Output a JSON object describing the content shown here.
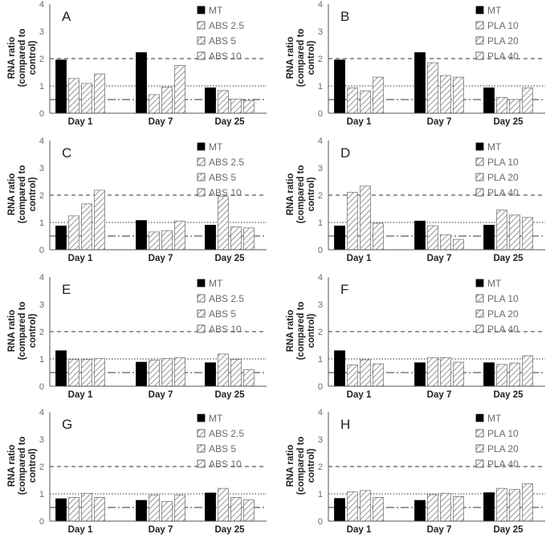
{
  "colors": {
    "mt": "#000000",
    "hatch": "#7a7a7a",
    "axis": "#555555",
    "label": "#6b6b6b",
    "text": "#222222"
  },
  "chart_data": [
    {
      "type": "bar",
      "panel": "A",
      "title": "A",
      "ylabel_line1": "RNA ratio",
      "ylabel_line2": "(compared to",
      "ylabel_line3": "control)",
      "ylim": [
        0,
        4
      ],
      "yticks": [
        "0",
        "1",
        "2",
        "3",
        "4"
      ],
      "categories": [
        "Day 1",
        "Day 7",
        "Day 25"
      ],
      "series": [
        {
          "name": "MT",
          "values": [
            1.95,
            2.22,
            0.93
          ]
        },
        {
          "name": "ABS 2.5",
          "values": [
            1.27,
            0.68,
            0.83
          ]
        },
        {
          "name": "ABS 5",
          "values": [
            1.09,
            0.96,
            0.52
          ]
        },
        {
          "name": "ABS 10",
          "values": [
            1.44,
            1.75,
            0.47
          ]
        }
      ],
      "reference_lines": [
        2,
        1,
        0.5
      ]
    },
    {
      "type": "bar",
      "panel": "B",
      "title": "B",
      "ylabel_line1": "RNA ratio",
      "ylabel_line2": "(compared to",
      "ylabel_line3": "control)",
      "ylim": [
        0,
        4
      ],
      "yticks": [
        "0",
        "1",
        "2",
        "3",
        "4"
      ],
      "categories": [
        "Day 1",
        "Day 7",
        "Day 25"
      ],
      "series": [
        {
          "name": "MT",
          "values": [
            1.95,
            2.22,
            0.93
          ]
        },
        {
          "name": "PLA 10",
          "values": [
            0.93,
            1.85,
            0.58
          ]
        },
        {
          "name": "PLA 20",
          "values": [
            0.82,
            1.38,
            0.5
          ]
        },
        {
          "name": "PLA 40",
          "values": [
            1.32,
            1.32,
            0.93
          ]
        }
      ],
      "reference_lines": [
        2,
        1,
        0.5
      ]
    },
    {
      "type": "bar",
      "panel": "C",
      "title": "C",
      "ylabel_line1": "RNA ratio",
      "ylabel_line2": "(compared to",
      "ylabel_line3": "control)",
      "ylim": [
        0,
        4
      ],
      "yticks": [
        "0",
        "1",
        "2",
        "3",
        "4"
      ],
      "categories": [
        "Day 1",
        "Day 7",
        "Day 25"
      ],
      "series": [
        {
          "name": "MT",
          "values": [
            0.87,
            1.07,
            0.9
          ]
        },
        {
          "name": "ABS 2.5",
          "values": [
            1.24,
            0.65,
            1.95
          ]
        },
        {
          "name": "ABS 5",
          "values": [
            1.68,
            0.7,
            0.84
          ]
        },
        {
          "name": "ABS 10",
          "values": [
            2.18,
            1.05,
            0.8
          ]
        }
      ],
      "reference_lines": [
        2,
        1,
        0.5
      ]
    },
    {
      "type": "bar",
      "panel": "D",
      "title": "D",
      "ylabel_line1": "RNA ratio",
      "ylabel_line2": "(compared to",
      "ylabel_line3": "control)",
      "ylim": [
        0,
        4
      ],
      "yticks": [
        "0",
        "1",
        "2",
        "3",
        "4"
      ],
      "categories": [
        "Day 1",
        "Day 7",
        "Day 25"
      ],
      "series": [
        {
          "name": "MT",
          "values": [
            0.87,
            1.05,
            0.9
          ]
        },
        {
          "name": "PLA 10",
          "values": [
            2.1,
            0.88,
            1.45
          ]
        },
        {
          "name": "PLA 20",
          "values": [
            2.33,
            0.55,
            1.27
          ]
        },
        {
          "name": "PLA 40",
          "values": [
            0.97,
            0.38,
            1.18
          ]
        }
      ],
      "reference_lines": [
        2,
        1,
        0.5
      ]
    },
    {
      "type": "bar",
      "panel": "E",
      "title": "E",
      "ylabel_line1": "RNA ratio",
      "ylabel_line2": "(compared to",
      "ylabel_line3": "control)",
      "ylim": [
        0,
        4
      ],
      "yticks": [
        "0",
        "1",
        "2",
        "3",
        "4"
      ],
      "categories": [
        "Day 1",
        "Day 7",
        "Day 25"
      ],
      "series": [
        {
          "name": "MT",
          "values": [
            1.3,
            0.88,
            0.86
          ]
        },
        {
          "name": "ABS 2.5",
          "values": [
            0.98,
            0.95,
            1.18
          ]
        },
        {
          "name": "ABS 5",
          "values": [
            0.98,
            1.02,
            0.98
          ]
        },
        {
          "name": "ABS 10",
          "values": [
            1.02,
            1.05,
            0.6
          ]
        }
      ],
      "reference_lines": [
        2,
        1,
        0.5
      ]
    },
    {
      "type": "bar",
      "panel": "F",
      "title": "F",
      "ylabel_line1": "RNA ratio",
      "ylabel_line2": "(compared to",
      "ylabel_line3": "control)",
      "ylim": [
        0,
        4
      ],
      "yticks": [
        "0",
        "1",
        "2",
        "3",
        "4"
      ],
      "categories": [
        "Day 1",
        "Day 7",
        "Day 25"
      ],
      "series": [
        {
          "name": "MT",
          "values": [
            1.3,
            0.86,
            0.86
          ]
        },
        {
          "name": "PLA 10",
          "values": [
            0.78,
            1.05,
            0.8
          ]
        },
        {
          "name": "PLA 20",
          "values": [
            0.97,
            1.05,
            0.85
          ]
        },
        {
          "name": "PLA 40",
          "values": [
            0.82,
            0.88,
            1.12
          ]
        }
      ],
      "reference_lines": [
        2,
        1,
        0.5
      ]
    },
    {
      "type": "bar",
      "panel": "G",
      "title": "G",
      "ylabel_line1": "RNA ratio",
      "ylabel_line2": "(compared to",
      "ylabel_line3": "control)",
      "ylim": [
        0,
        4
      ],
      "yticks": [
        "0",
        "1",
        "2",
        "3",
        "4"
      ],
      "categories": [
        "Day 1",
        "Day 7",
        "Day 25"
      ],
      "series": [
        {
          "name": "MT",
          "values": [
            0.82,
            0.76,
            1.03
          ]
        },
        {
          "name": "ABS 2.5",
          "values": [
            0.87,
            0.95,
            1.2
          ]
        },
        {
          "name": "ABS 5",
          "values": [
            1.02,
            0.72,
            0.87
          ]
        },
        {
          "name": "ABS 10",
          "values": [
            0.87,
            0.95,
            0.78
          ]
        }
      ],
      "reference_lines": [
        2,
        1,
        0.5
      ]
    },
    {
      "type": "bar",
      "panel": "H",
      "title": "H",
      "ylabel_line1": "RNA ratio",
      "ylabel_line2": "(compared to",
      "ylabel_line3": "control)",
      "ylim": [
        0,
        4
      ],
      "yticks": [
        "0",
        "1",
        "2",
        "3",
        "4"
      ],
      "categories": [
        "Day 1",
        "Day 7",
        "Day 25"
      ],
      "series": [
        {
          "name": "MT",
          "values": [
            0.83,
            0.76,
            1.04
          ]
        },
        {
          "name": "PLA 10",
          "values": [
            1.07,
            0.97,
            1.2
          ]
        },
        {
          "name": "PLA 20",
          "values": [
            1.12,
            1.02,
            1.16
          ]
        },
        {
          "name": "PLA 40",
          "values": [
            0.87,
            0.9,
            1.37
          ]
        }
      ],
      "reference_lines": [
        2,
        1,
        0.5
      ]
    }
  ]
}
